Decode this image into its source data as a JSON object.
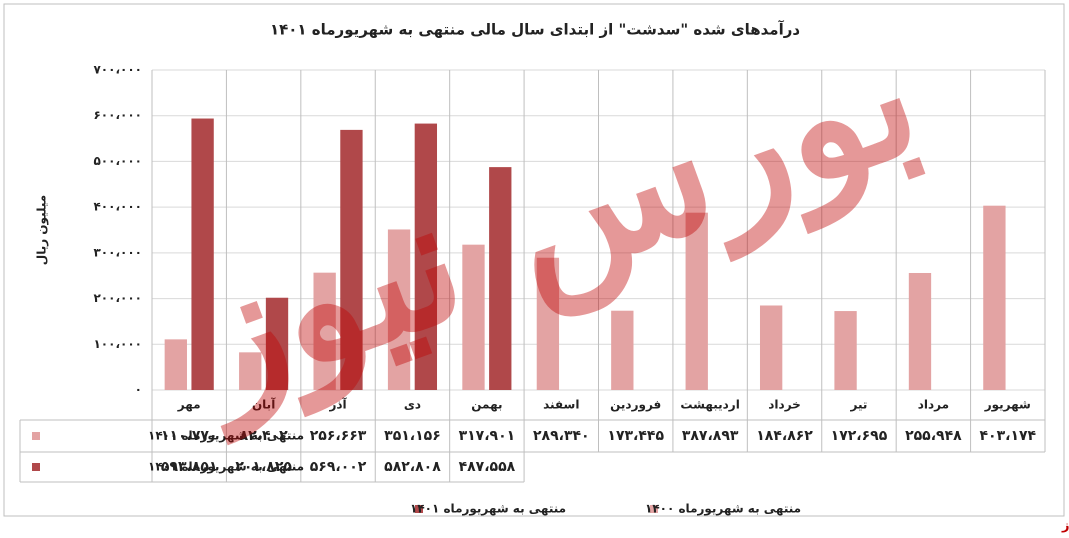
{
  "chart_data": {
    "type": "bar",
    "title": "درآمدهای شده \"سدشت\" از ابتدای سال مالی منتهی به شهریورماه ۱۴۰۱",
    "y_label": "میلیون ریال",
    "watermark": "بورس نیوز",
    "source": "بورس نیوز",
    "categories": [
      "مهر",
      "آبان",
      "آذر",
      "دی",
      "بهمن",
      "اسفند",
      "فروردین",
      "اردیبهشت",
      "خرداد",
      "تیر",
      "مرداد",
      "شهریور"
    ],
    "series": [
      {
        "name": "منتهی به شهریورماه ۱۴۰۰",
        "color": "#e3a3a3",
        "values": [
          110770,
          82402,
          256663,
          351156,
          317901,
          289340,
          173445,
          387893,
          184862,
          172695,
          255948,
          403174
        ],
        "value_labels": [
          "۱۱۰،۷۷۰",
          "۸۲،۴۰۲",
          "۲۵۶،۶۶۳",
          "۳۵۱،۱۵۶",
          "۳۱۷،۹۰۱",
          "۲۸۹،۳۴۰",
          "۱۷۳،۴۴۵",
          "۳۸۷،۸۹۳",
          "۱۸۴،۸۶۲",
          "۱۷۲،۶۹۵",
          "۲۵۵،۹۴۸",
          "۴۰۳،۱۷۴"
        ]
      },
      {
        "name": "منتهی به شهریورماه ۱۴۰۱",
        "color": "#b0484a",
        "values": [
          593851,
          201825,
          569002,
          582808,
          487558,
          null,
          null,
          null,
          null,
          null,
          null,
          null
        ],
        "value_labels": [
          "۵۹۳،۸۵۱",
          "۲۰۱،۸۲۵",
          "۵۶۹،۰۰۲",
          "۵۸۲،۸۰۸",
          "۴۸۷،۵۵۸",
          null,
          null,
          null,
          null,
          null,
          null,
          null
        ]
      }
    ],
    "ylim": [
      0,
      700000
    ],
    "yticks": [
      {
        "value": 0,
        "label": "۰"
      },
      {
        "value": 100000,
        "label": "۱۰۰،۰۰۰"
      },
      {
        "value": 200000,
        "label": "۲۰۰،۰۰۰"
      },
      {
        "value": 300000,
        "label": "۳۰۰،۰۰۰"
      },
      {
        "value": 400000,
        "label": "۴۰۰،۰۰۰"
      },
      {
        "value": 500000,
        "label": "۵۰۰،۰۰۰"
      },
      {
        "value": 600000,
        "label": "۶۰۰،۰۰۰"
      },
      {
        "value": 700000,
        "label": "۷۰۰،۰۰۰"
      }
    ],
    "grid": true
  }
}
